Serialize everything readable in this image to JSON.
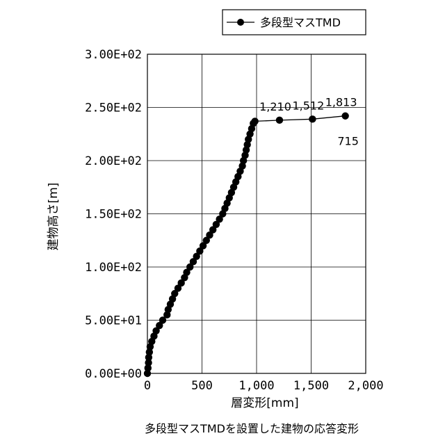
{
  "chart_data": {
    "type": "line",
    "title": "",
    "xlabel": "層変形[mm]",
    "ylabel": "建物高さ[m]",
    "xlim": [
      0,
      2000
    ],
    "ylim": [
      0,
      300
    ],
    "x_ticks": [
      0,
      500,
      1000,
      1500,
      2000
    ],
    "x_tick_labels": [
      "0",
      "500",
      "1,000",
      "1,500",
      "2,000"
    ],
    "y_ticks": [
      0,
      50,
      100,
      150,
      200,
      250,
      300
    ],
    "y_tick_labels": [
      "0.00E+00",
      "5.00E+01",
      "1.00E+02",
      "1.50E+02",
      "2.00E+02",
      "2.50E+02",
      "3.00E+02"
    ],
    "grid": true,
    "legend_position": "top-right",
    "series": [
      {
        "name": "多段型マスTMD",
        "color": "#000000",
        "marker": "circle",
        "points": [
          [
            0,
            0
          ],
          [
            5,
            5
          ],
          [
            10,
            10
          ],
          [
            12,
            15
          ],
          [
            18,
            20
          ],
          [
            25,
            25
          ],
          [
            40,
            30
          ],
          [
            60,
            35
          ],
          [
            80,
            40
          ],
          [
            110,
            45
          ],
          [
            140,
            50
          ],
          [
            180,
            55
          ],
          [
            190,
            60
          ],
          [
            210,
            65
          ],
          [
            230,
            70
          ],
          [
            250,
            75
          ],
          [
            280,
            80
          ],
          [
            310,
            85
          ],
          [
            340,
            90
          ],
          [
            360,
            95
          ],
          [
            390,
            100
          ],
          [
            420,
            105
          ],
          [
            450,
            110
          ],
          [
            480,
            115
          ],
          [
            510,
            120
          ],
          [
            540,
            125
          ],
          [
            570,
            130
          ],
          [
            600,
            135
          ],
          [
            630,
            140
          ],
          [
            660,
            145
          ],
          [
            690,
            150
          ],
          [
            710,
            155
          ],
          [
            730,
            160
          ],
          [
            750,
            165
          ],
          [
            770,
            170
          ],
          [
            790,
            175
          ],
          [
            810,
            180
          ],
          [
            830,
            185
          ],
          [
            850,
            190
          ],
          [
            870,
            195
          ],
          [
            880,
            200
          ],
          [
            895,
            205
          ],
          [
            905,
            210
          ],
          [
            915,
            215
          ],
          [
            925,
            220
          ],
          [
            940,
            225
          ],
          [
            955,
            230
          ],
          [
            970,
            235
          ],
          [
            985,
            237
          ],
          [
            1210,
            238
          ],
          [
            1512,
            239
          ],
          [
            1813,
            242
          ]
        ]
      }
    ],
    "annotations": [
      {
        "text": "1,210",
        "x": 1210,
        "y": 238
      },
      {
        "text": "1,512",
        "x": 1512,
        "y": 239
      },
      {
        "text": "1,813",
        "x": 1813,
        "y": 242
      },
      {
        "text": "715",
        "x": 1813,
        "y": 242
      }
    ],
    "caption": "多段型マスTMDを設置した建物の応答変形"
  }
}
